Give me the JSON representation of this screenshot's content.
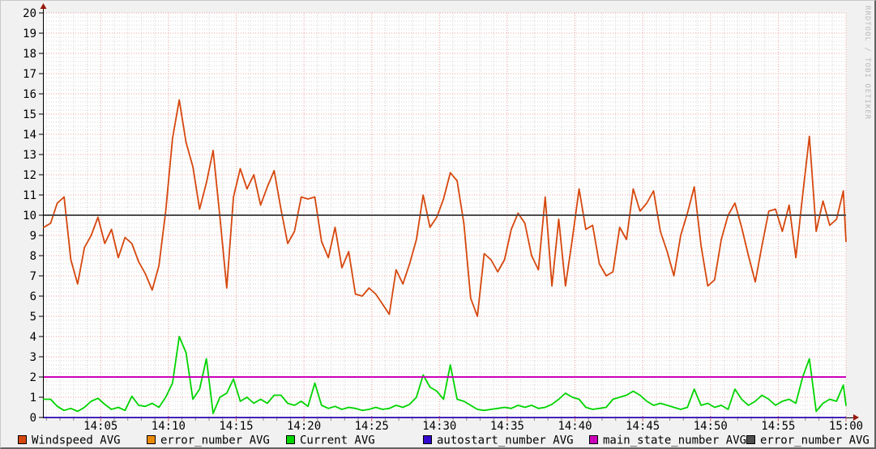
{
  "watermark": {
    "text": "RRDTOOL / TOBI OETIKER"
  },
  "colors": {
    "background": "#f1f1f1",
    "plot_background": "#ffffff",
    "major_grid": "#f09f9f",
    "minor_grid": "#d5d5d5",
    "axis": "#000000",
    "axis_arrow": "#991b0e",
    "tick_minor": "#8a8a8a",
    "tick_major": "#cc6666",
    "label_text": "#000000",
    "watermark_text": "#b9b9b9"
  },
  "chart_data": {
    "type": "line",
    "title": "",
    "xlabel": "",
    "ylabel": "",
    "x_range": [
      "14:00",
      "15:00"
    ],
    "x_tick_labels": [
      "14:05",
      "14:10",
      "14:15",
      "14:20",
      "14:25",
      "14:30",
      "14:35",
      "14:40",
      "14:45",
      "14:50",
      "14:55",
      "15:00"
    ],
    "x_tick_interval_min": 5,
    "x_minor_interval_min": 1,
    "ylim": [
      0,
      20
    ],
    "y_tick_step": 1,
    "y_minor_step": 0.2,
    "grid": true,
    "legend_position": "bottom",
    "sample_start_min": 0.8,
    "sample_interval_min": 0.5,
    "series": [
      {
        "name": "Windspeed AVG",
        "type": "line",
        "color": "#d6470d",
        "values": [
          9.4,
          9.6,
          10.6,
          10.9,
          7.8,
          6.6,
          8.4,
          9.0,
          9.9,
          8.6,
          9.3,
          7.9,
          8.9,
          8.6,
          7.7,
          7.1,
          6.3,
          7.5,
          10.2,
          13.8,
          15.7,
          13.6,
          12.4,
          10.3,
          11.6,
          13.2,
          9.9,
          6.4,
          10.9,
          12.3,
          11.3,
          12.0,
          10.5,
          11.4,
          12.2,
          10.3,
          8.6,
          9.2,
          10.9,
          10.8,
          10.9,
          8.7,
          7.9,
          9.4,
          7.4,
          8.2,
          6.1,
          6.0,
          6.4,
          6.1,
          5.6,
          5.1,
          7.3,
          6.6,
          7.6,
          8.8,
          11.0,
          9.4,
          9.9,
          10.8,
          12.1,
          11.7,
          9.6,
          5.9,
          5.0,
          8.1,
          7.8,
          7.2,
          7.8,
          9.3,
          10.1,
          9.6,
          8.0,
          7.3,
          10.9,
          6.5,
          9.8,
          6.5,
          8.8,
          11.3,
          9.3,
          9.5,
          7.6,
          7.0,
          7.2,
          9.4,
          8.8,
          11.3,
          10.2,
          10.6,
          11.2,
          9.2,
          8.2,
          7.0,
          9.0,
          10.1,
          11.4,
          8.5,
          6.5,
          6.8,
          8.8,
          10.0,
          10.6,
          9.4,
          8.0,
          6.7,
          8.5,
          10.2,
          10.3,
          9.2,
          10.5,
          7.9,
          11.0,
          13.9,
          9.2,
          10.7,
          9.5,
          9.8,
          11.2,
          8.7
        ]
      },
      {
        "name": "error_number AVG",
        "type": "hline",
        "color": "#ea8a00",
        "value": null
      },
      {
        "name": "Current AVG",
        "type": "line",
        "color": "#00d400",
        "values": [
          0.9,
          0.9,
          0.55,
          0.35,
          0.45,
          0.3,
          0.5,
          0.8,
          0.95,
          0.65,
          0.4,
          0.5,
          0.35,
          1.05,
          0.6,
          0.55,
          0.7,
          0.5,
          1.0,
          1.7,
          4.0,
          3.2,
          0.9,
          1.4,
          2.9,
          0.2,
          1.0,
          1.2,
          1.9,
          0.8,
          1.0,
          0.7,
          0.9,
          0.7,
          1.1,
          1.1,
          0.7,
          0.6,
          0.8,
          0.55,
          1.7,
          0.6,
          0.45,
          0.55,
          0.4,
          0.5,
          0.45,
          0.35,
          0.4,
          0.5,
          0.4,
          0.45,
          0.6,
          0.5,
          0.65,
          1.0,
          2.1,
          1.5,
          1.3,
          0.9,
          2.6,
          0.9,
          0.8,
          0.6,
          0.4,
          0.35,
          0.4,
          0.45,
          0.5,
          0.45,
          0.6,
          0.5,
          0.6,
          0.45,
          0.5,
          0.65,
          0.9,
          1.2,
          1.0,
          0.9,
          0.5,
          0.4,
          0.45,
          0.5,
          0.9,
          1.0,
          1.1,
          1.3,
          1.1,
          0.8,
          0.6,
          0.7,
          0.6,
          0.5,
          0.4,
          0.5,
          1.4,
          0.6,
          0.7,
          0.5,
          0.6,
          0.4,
          1.4,
          0.9,
          0.6,
          0.8,
          1.1,
          0.9,
          0.6,
          0.8,
          0.9,
          0.7,
          2.0,
          2.9,
          0.3,
          0.7,
          0.9,
          0.8,
          1.6,
          0.6
        ]
      },
      {
        "name": "autostart_number AVG",
        "type": "hline",
        "color": "#3308cc",
        "value": 0
      },
      {
        "name": "main_state_number AVG",
        "type": "hline",
        "color": "#cc00b8",
        "value": 2
      },
      {
        "name": "error_number AVG",
        "type": "hline",
        "color": "#4d4d4d",
        "value": 10
      }
    ]
  }
}
